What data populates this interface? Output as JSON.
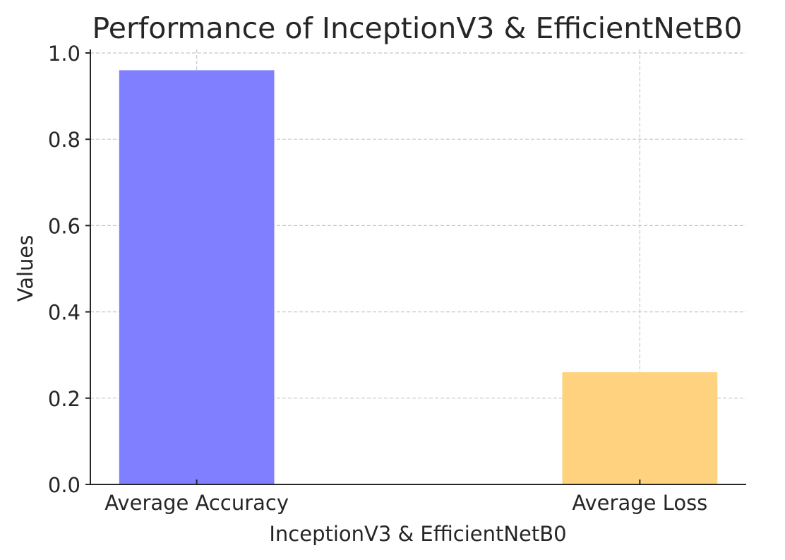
{
  "chart_data": {
    "type": "bar",
    "title": "Performance of InceptionV3 & EfficientNetB0",
    "xlabel": "InceptionV3 & EfficientNetB0",
    "ylabel": "Values",
    "categories": [
      "Average Accuracy",
      "Average Loss"
    ],
    "values": [
      0.96,
      0.26
    ],
    "colors": [
      "#7f7fff",
      "#ffd280"
    ],
    "ylim": [
      0,
      1.0
    ],
    "yticks": [
      0.0,
      0.2,
      0.4,
      0.6,
      0.8,
      1.0
    ],
    "ytick_labels": [
      "0.0",
      "0.2",
      "0.4",
      "0.6",
      "0.8",
      "1.0"
    ],
    "grid": true,
    "legend": "none"
  }
}
